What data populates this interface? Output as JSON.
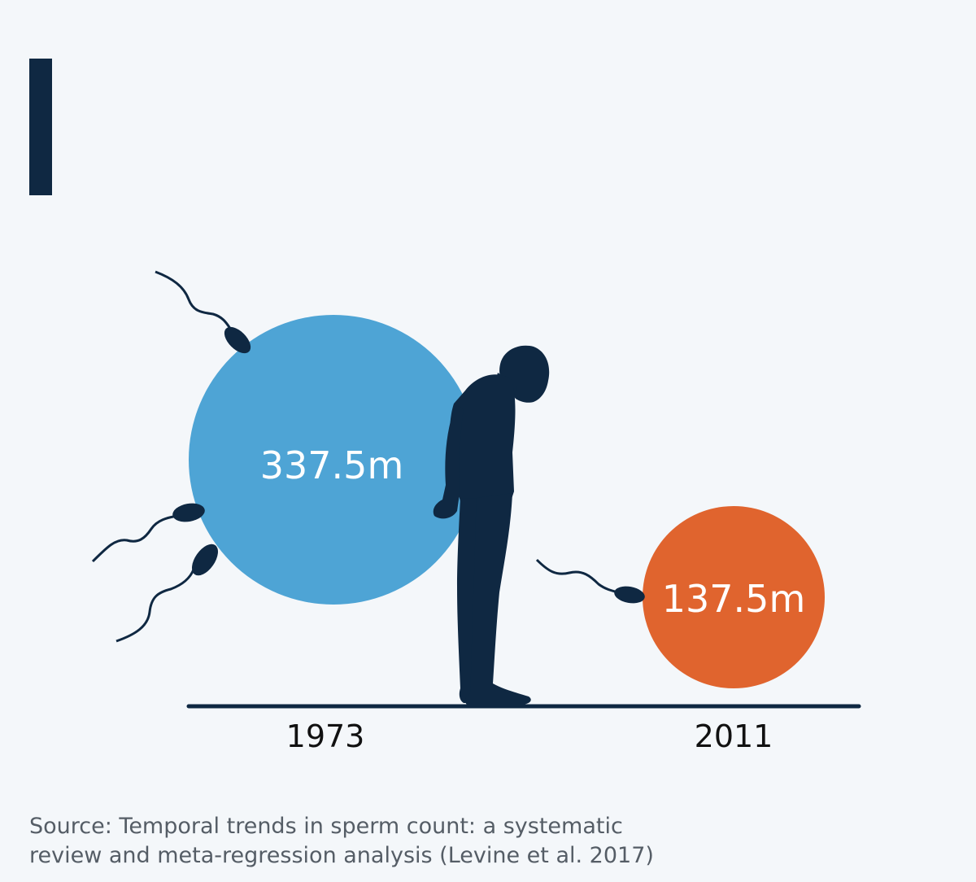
{
  "colors": {
    "background": "#f4f7fa",
    "accent": "#0f2842",
    "series_1973": "#4ea4d5",
    "series_2011": "#e0642e",
    "silhouette": "#0f2842",
    "baseline": "#0f2842"
  },
  "icons": [
    "sperm-icon",
    "man-silhouette-icon"
  ],
  "chart_data": {
    "type": "bubble",
    "categories": [
      "1973",
      "2011"
    ],
    "values": [
      337.5,
      137.5
    ],
    "value_labels": [
      "337.5m",
      "137.5m"
    ],
    "value_unit": "m"
  },
  "footer": {
    "source_line1": "Source: Temporal trends in sperm count: a systematic",
    "source_line2": "review and meta-regression analysis (Levine et al. 2017)"
  }
}
